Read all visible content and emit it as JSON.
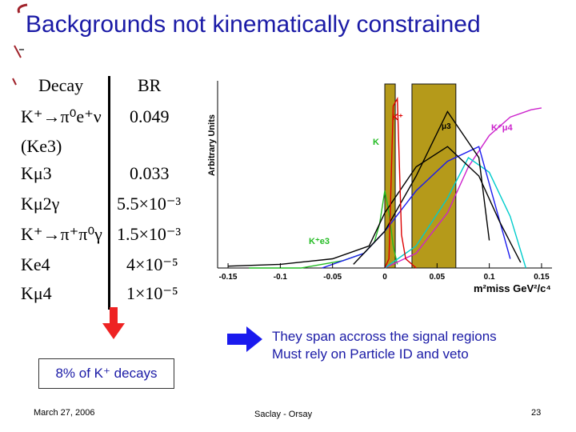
{
  "slide": {
    "title": "Backgrounds not kinematically constrained",
    "page_number": "23",
    "date": "March 27, 2006",
    "venue": "Saclay - Orsay"
  },
  "table": {
    "header": {
      "decay": "Decay",
      "br": "BR"
    },
    "rows": [
      {
        "decay": "K⁺→π⁰e⁺ν",
        "br": "0.049"
      },
      {
        "decay": "(Ke3)",
        "br": ""
      },
      {
        "decay": "Kμ3",
        "br": "0.033"
      },
      {
        "decay": "Kμ2γ",
        "br": "5.5×10⁻³"
      },
      {
        "decay": "K⁺→π⁺π⁰γ",
        "br": "1.5×10⁻³"
      },
      {
        "decay": "Ke4",
        "br": "4×10⁻⁵"
      },
      {
        "decay": "Kμ4",
        "br": "1×10⁻⁵"
      }
    ]
  },
  "summary": {
    "text": "8% of K⁺ decays"
  },
  "note": {
    "line1": "They span accross the signal regions",
    "line2": "Must rely on Particle ID and veto"
  },
  "chart_data": {
    "type": "line",
    "ylabel": "Arbitrary Units",
    "xlabel": "m²miss GeV²/c⁴",
    "xlim": [
      -0.16,
      0.16
    ],
    "x_ticks": [
      "-0.15",
      "-0.1",
      "-0.05",
      "0",
      "0.05",
      "0.1",
      "0.15"
    ],
    "labels": {
      "ke3": "K⁺e3",
      "km4": "K⁺μ4",
      "kp": "K⁺",
      "km3": "μ3",
      "k": "K"
    },
    "colors": {
      "ke3": "#22bb22",
      "km4": "#cc22cc",
      "red": "#dd0000",
      "black": "#000000",
      "cyan": "#00cccc",
      "blue": "#1a1aee",
      "band": "#b59a1a"
    },
    "signal_regions": [
      [
        0.0,
        0.01
      ],
      [
        0.026,
        0.068
      ]
    ],
    "series": [
      {
        "name": "K⁺e3",
        "color": "#22bb22",
        "x": [
          -0.13,
          -0.08,
          -0.04,
          -0.02,
          -0.01,
          -0.005,
          0.0,
          0.004,
          0.008,
          0.012
        ],
        "y": [
          0.0,
          0.0,
          0.04,
          0.08,
          0.14,
          0.24,
          0.42,
          0.3,
          0.12,
          0.02
        ]
      },
      {
        "name": "K⁺μ4",
        "color": "#cc22cc",
        "x": [
          0.0,
          0.03,
          0.06,
          0.08,
          0.1,
          0.12,
          0.14,
          0.15
        ],
        "y": [
          0.0,
          0.08,
          0.3,
          0.55,
          0.72,
          0.82,
          0.86,
          0.87
        ]
      },
      {
        "color": "#00cccc",
        "x": [
          0.0,
          0.03,
          0.06,
          0.08,
          0.1,
          0.12,
          0.135
        ],
        "y": [
          0.0,
          0.12,
          0.38,
          0.6,
          0.52,
          0.28,
          0.0
        ]
      },
      {
        "color": "#1a1aee",
        "x": [
          -0.06,
          -0.02,
          0.0,
          0.03,
          0.06,
          0.09,
          0.12
        ],
        "y": [
          0.0,
          0.08,
          0.2,
          0.42,
          0.58,
          0.66,
          0.05
        ]
      },
      {
        "color": "#000000",
        "x": [
          -0.15,
          -0.1,
          -0.05,
          -0.015,
          0.0,
          0.03,
          0.06,
          0.09,
          0.11,
          0.13
        ],
        "y": [
          0.01,
          0.02,
          0.05,
          0.12,
          0.3,
          0.55,
          0.66,
          0.5,
          0.25,
          0.03
        ]
      },
      {
        "color": "#000000",
        "x": [
          -0.03,
          0.0,
          0.03,
          0.06,
          0.09,
          0.1
        ],
        "y": [
          0.02,
          0.2,
          0.5,
          0.85,
          0.6,
          0.15
        ]
      },
      {
        "color": "#dd0000",
        "x": [
          0.0,
          0.004,
          0.008,
          0.012,
          0.016,
          0.02,
          0.03
        ],
        "y": [
          0.0,
          0.05,
          0.88,
          0.92,
          0.18,
          0.05,
          0.0
        ]
      }
    ]
  }
}
